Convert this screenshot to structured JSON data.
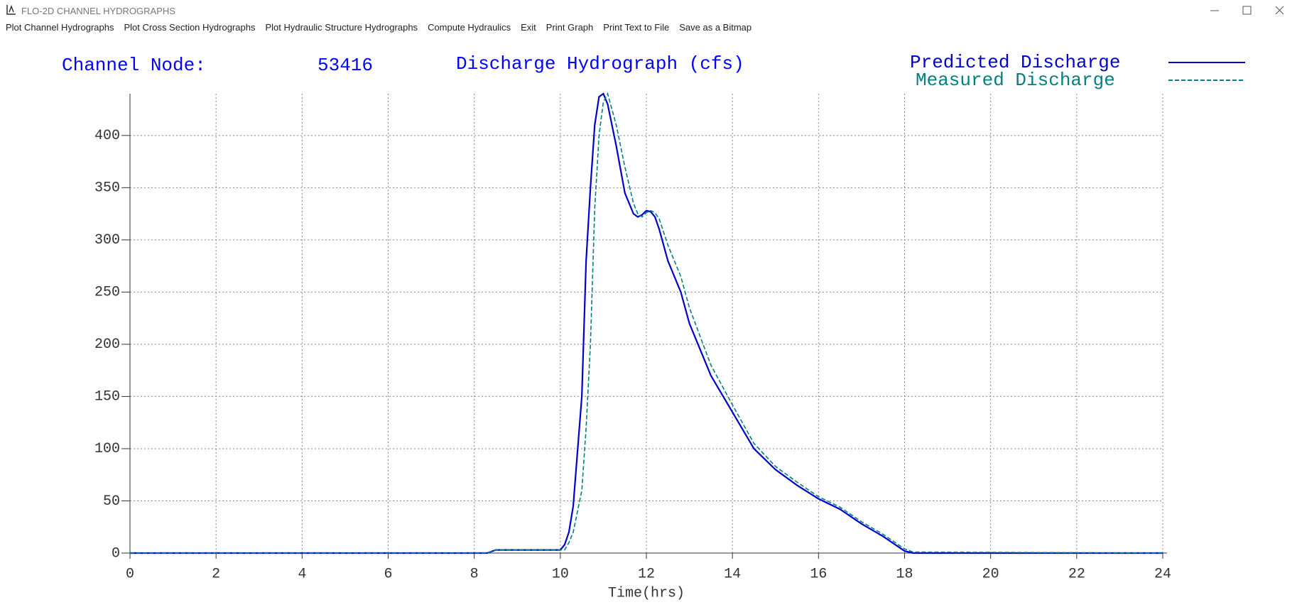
{
  "window": {
    "title": "FLO-2D CHANNEL HYDROGRAPHS"
  },
  "menu": [
    "Plot Channel Hydrographs",
    "Plot Cross Section Hydrographs",
    "Plot Hydraulic Structure Hydrographs",
    "Compute Hydraulics",
    "Exit",
    "Print Graph",
    "Print Text to File",
    "Save as a Bitmap"
  ],
  "chart_data": {
    "type": "line",
    "node_label": "Channel Node:",
    "node": "53416",
    "title": "Discharge Hydrograph (cfs)",
    "x_label": "Time(hrs)",
    "x": [
      0,
      8.3,
      8.5,
      10,
      10.1,
      10.2,
      10.3,
      10.5,
      10.6,
      10.7,
      10.8,
      10.9,
      11,
      11.1,
      11.3,
      11.5,
      11.7,
      11.8,
      11.9,
      12,
      12.1,
      12.2,
      12.3,
      12.5,
      12.8,
      13,
      13.5,
      14,
      14.5,
      15,
      15.5,
      16,
      16.5,
      17,
      17.5,
      18,
      18.2,
      24
    ],
    "series": [
      {
        "name": "Predicted Discharge",
        "color": "#0000cc",
        "dash": false,
        "values": [
          0,
          0,
          3,
          3,
          8,
          20,
          45,
          150,
          280,
          350,
          410,
          437,
          440,
          430,
          390,
          345,
          325,
          322,
          324,
          328,
          327,
          322,
          310,
          280,
          250,
          220,
          170,
          135,
          100,
          80,
          65,
          52,
          42,
          28,
          16,
          2,
          0,
          0
        ]
      },
      {
        "name": "Measured Discharge",
        "color": "#008080",
        "dash": true,
        "values": [
          0,
          0,
          3,
          3,
          3,
          10,
          20,
          60,
          120,
          200,
          330,
          400,
          432,
          440,
          410,
          370,
          335,
          325,
          322,
          326,
          328,
          326,
          320,
          295,
          265,
          235,
          180,
          142,
          105,
          83,
          68,
          54,
          44,
          30,
          18,
          4,
          1,
          0
        ]
      }
    ],
    "xlim": [
      0,
      24
    ],
    "xticks": [
      0,
      2,
      4,
      6,
      8,
      10,
      12,
      14,
      16,
      18,
      20,
      22,
      24
    ],
    "ylim": [
      0,
      440
    ],
    "yticks": [
      0,
      50,
      100,
      150,
      200,
      250,
      300,
      350,
      400
    ],
    "grid": true
  }
}
